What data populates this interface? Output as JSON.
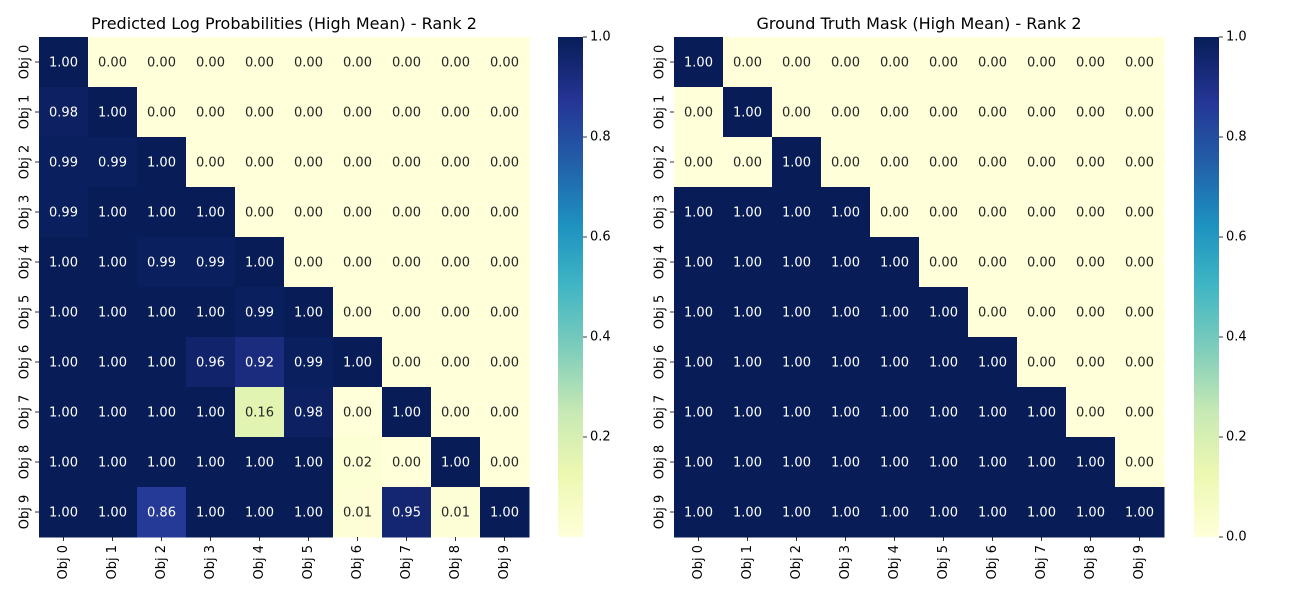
{
  "chart_data": [
    {
      "type": "heatmap",
      "title": "Predicted Log Probabilities (High Mean) - Rank 2",
      "x_labels": [
        "Obj 0",
        "Obj 1",
        "Obj 2",
        "Obj 3",
        "Obj 4",
        "Obj 5",
        "Obj 6",
        "Obj 7",
        "Obj 8",
        "Obj 9"
      ],
      "y_labels": [
        "Obj 0",
        "Obj 1",
        "Obj 2",
        "Obj 3",
        "Obj 4",
        "Obj 5",
        "Obj 6",
        "Obj 7",
        "Obj 8",
        "Obj 9"
      ],
      "values": [
        [
          1.0,
          0.0,
          0.0,
          0.0,
          0.0,
          0.0,
          0.0,
          0.0,
          0.0,
          0.0
        ],
        [
          0.98,
          1.0,
          0.0,
          0.0,
          0.0,
          0.0,
          0.0,
          0.0,
          0.0,
          0.0
        ],
        [
          0.99,
          0.99,
          1.0,
          0.0,
          0.0,
          0.0,
          0.0,
          0.0,
          0.0,
          0.0
        ],
        [
          0.99,
          1.0,
          1.0,
          1.0,
          0.0,
          0.0,
          0.0,
          0.0,
          0.0,
          0.0
        ],
        [
          1.0,
          1.0,
          0.99,
          0.99,
          1.0,
          0.0,
          0.0,
          0.0,
          0.0,
          0.0
        ],
        [
          1.0,
          1.0,
          1.0,
          1.0,
          0.99,
          1.0,
          0.0,
          0.0,
          0.0,
          0.0
        ],
        [
          1.0,
          1.0,
          1.0,
          0.96,
          0.92,
          0.99,
          1.0,
          0.0,
          0.0,
          0.0
        ],
        [
          1.0,
          1.0,
          1.0,
          1.0,
          0.16,
          0.98,
          0.0,
          1.0,
          0.0,
          0.0
        ],
        [
          1.0,
          1.0,
          1.0,
          1.0,
          1.0,
          1.0,
          0.02,
          0.0,
          1.0,
          0.0
        ],
        [
          1.0,
          1.0,
          0.86,
          1.0,
          1.0,
          1.0,
          0.01,
          0.95,
          0.01,
          1.0
        ]
      ],
      "colormap": "YlGnBu",
      "colorbar": {
        "range": [
          0.0,
          1.0
        ],
        "ticks": [
          0.2,
          0.4,
          0.6,
          0.8,
          1.0
        ],
        "tick_labels": [
          "0.2",
          "0.4",
          "0.6",
          "0.8",
          "1.0"
        ]
      }
    },
    {
      "type": "heatmap",
      "title": "Ground Truth Mask (High Mean) - Rank 2",
      "x_labels": [
        "Obj 0",
        "Obj 1",
        "Obj 2",
        "Obj 3",
        "Obj 4",
        "Obj 5",
        "Obj 6",
        "Obj 7",
        "Obj 8",
        "Obj 9"
      ],
      "y_labels": [
        "Obj 0",
        "Obj 1",
        "Obj 2",
        "Obj 3",
        "Obj 4",
        "Obj 5",
        "Obj 6",
        "Obj 7",
        "Obj 8",
        "Obj 9"
      ],
      "values": [
        [
          1.0,
          0.0,
          0.0,
          0.0,
          0.0,
          0.0,
          0.0,
          0.0,
          0.0,
          0.0
        ],
        [
          0.0,
          1.0,
          0.0,
          0.0,
          0.0,
          0.0,
          0.0,
          0.0,
          0.0,
          0.0
        ],
        [
          0.0,
          0.0,
          1.0,
          0.0,
          0.0,
          0.0,
          0.0,
          0.0,
          0.0,
          0.0
        ],
        [
          1.0,
          1.0,
          1.0,
          1.0,
          0.0,
          0.0,
          0.0,
          0.0,
          0.0,
          0.0
        ],
        [
          1.0,
          1.0,
          1.0,
          1.0,
          1.0,
          0.0,
          0.0,
          0.0,
          0.0,
          0.0
        ],
        [
          1.0,
          1.0,
          1.0,
          1.0,
          1.0,
          1.0,
          0.0,
          0.0,
          0.0,
          0.0
        ],
        [
          1.0,
          1.0,
          1.0,
          1.0,
          1.0,
          1.0,
          1.0,
          0.0,
          0.0,
          0.0
        ],
        [
          1.0,
          1.0,
          1.0,
          1.0,
          1.0,
          1.0,
          1.0,
          1.0,
          0.0,
          0.0
        ],
        [
          1.0,
          1.0,
          1.0,
          1.0,
          1.0,
          1.0,
          1.0,
          1.0,
          1.0,
          0.0
        ],
        [
          1.0,
          1.0,
          1.0,
          1.0,
          1.0,
          1.0,
          1.0,
          1.0,
          1.0,
          1.0
        ]
      ],
      "colormap": "YlGnBu",
      "colorbar": {
        "range": [
          0.0,
          1.0
        ],
        "ticks": [
          0.0,
          0.2,
          0.4,
          0.6,
          0.8,
          1.0
        ],
        "tick_labels": [
          "0.0",
          "0.2",
          "0.4",
          "0.6",
          "0.8",
          "1.0"
        ]
      }
    }
  ]
}
